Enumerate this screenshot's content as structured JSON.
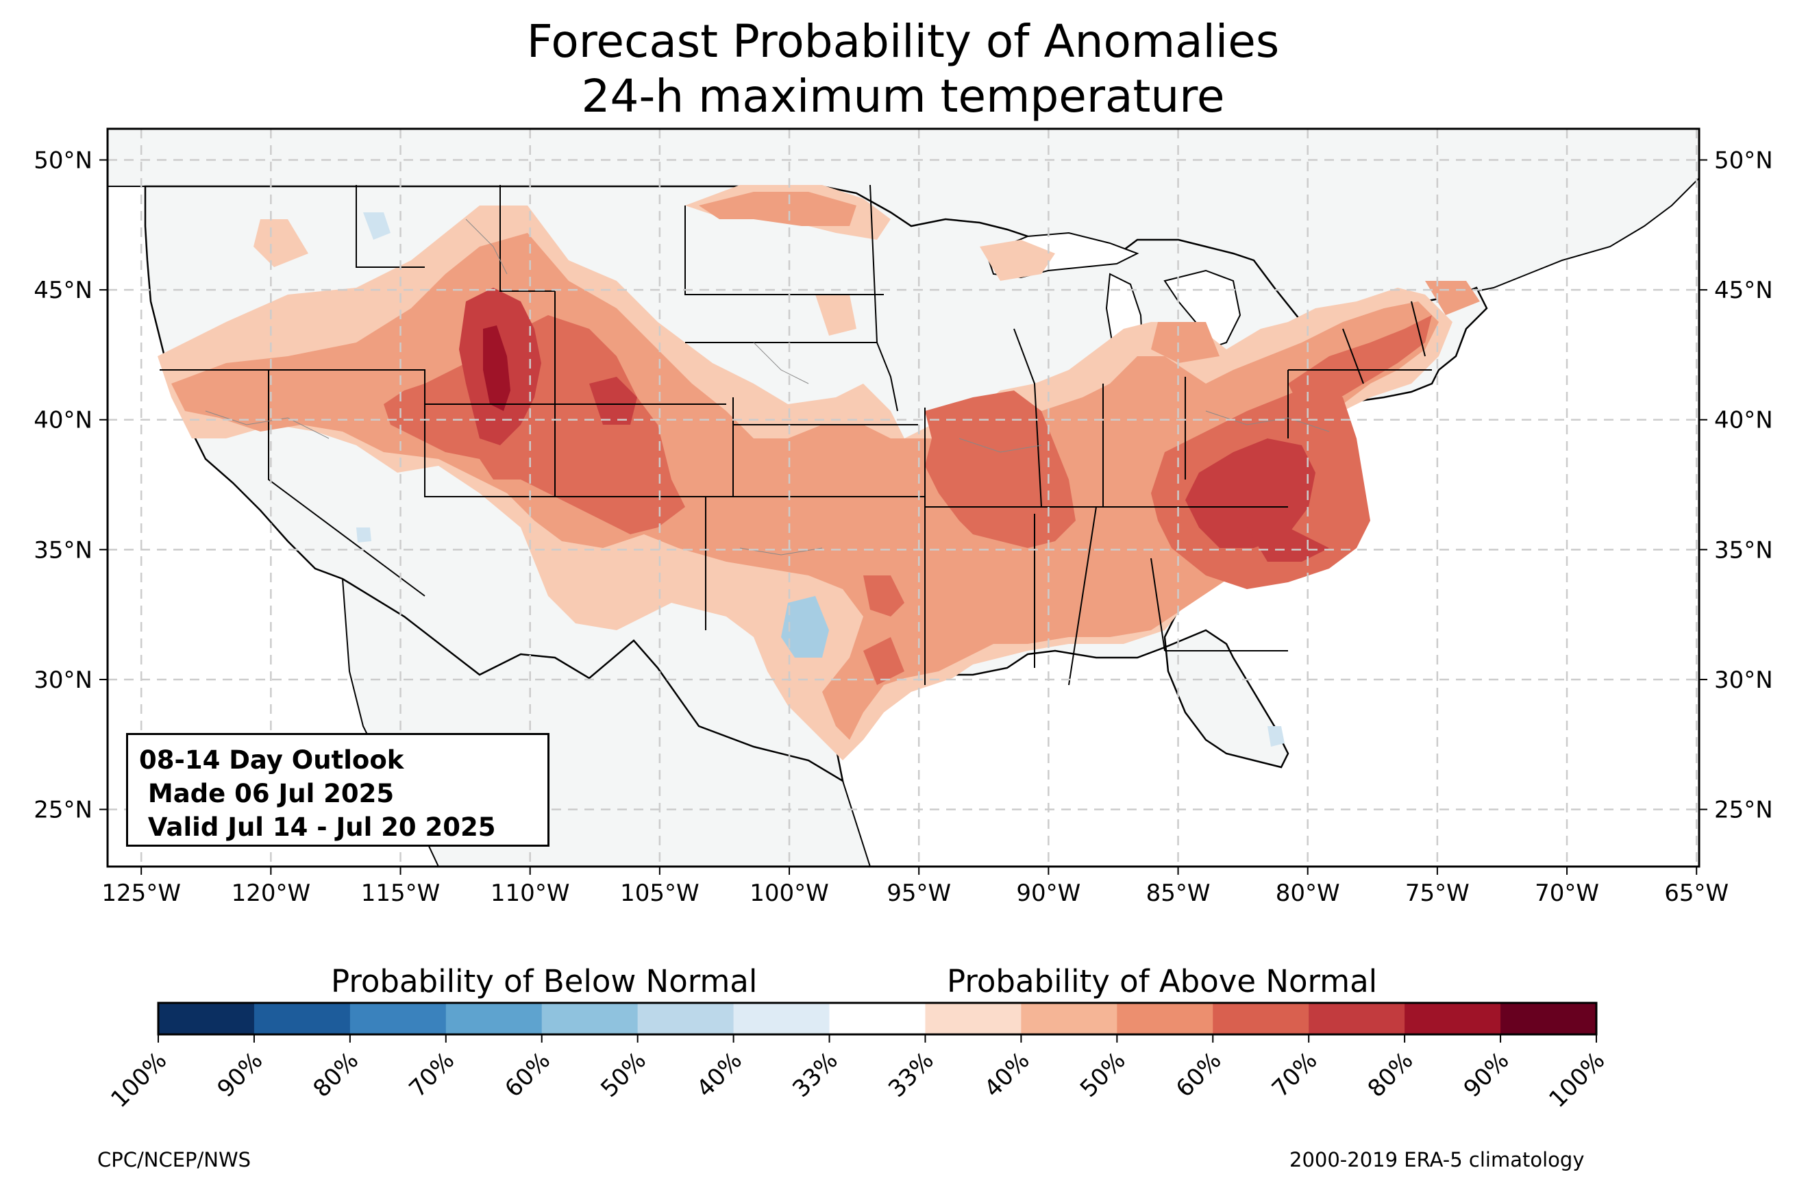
{
  "title": {
    "line1": "Forecast Probability of Anomalies",
    "line2": "24-h maximum temperature"
  },
  "outlook": {
    "line1": "08-14 Day Outlook",
    "line2": " Made 06 Jul 2025",
    "line3": " Valid Jul 14 - Jul 20 2025"
  },
  "axes": {
    "lon_ticks": [
      "125°W",
      "120°W",
      "115°W",
      "110°W",
      "105°W",
      "100°W",
      "95°W",
      "90°W",
      "85°W",
      "80°W",
      "75°W",
      "70°W",
      "65°W"
    ],
    "lat_ticks": [
      "50°N",
      "45°N",
      "40°N",
      "35°N",
      "30°N",
      "25°N"
    ],
    "lon_values": [
      -125,
      -120,
      -115,
      -110,
      -105,
      -100,
      -95,
      -90,
      -85,
      -80,
      -75,
      -70,
      -65
    ],
    "lat_values": [
      50,
      45,
      40,
      35,
      30,
      25
    ],
    "lon_range": [
      -126.3,
      -64.9
    ],
    "lat_range": [
      22.8,
      51.2
    ],
    "gridlines": true
  },
  "colorbar": {
    "below_label": "Probability of Below Normal",
    "above_label": "Probability of Above Normal",
    "ticks": [
      "100%",
      "90%",
      "80%",
      "70%",
      "60%",
      "50%",
      "40%",
      "33%",
      "33%",
      "40%",
      "50%",
      "60%",
      "70%",
      "80%",
      "90%",
      "100%"
    ],
    "colors": [
      "#0b2f61",
      "#1d5c9b",
      "#3a82bd",
      "#5ea3cf",
      "#8fc2de",
      "#bcd8ea",
      "#deebf5",
      "#ffffff",
      "#fbdccb",
      "#f5b596",
      "#ec8f6f",
      "#d9604f",
      "#c23b3e",
      "#9f1328",
      "#67001f"
    ]
  },
  "credits": {
    "left": "CPC/NCEP/NWS",
    "right": "2000-2019 ERA-5 climatology"
  },
  "colors": {
    "land": "#f4f6f6",
    "ocean": "#ffffff",
    "above_40": "#f8cbb3",
    "above_50": "#ef9f80",
    "above_60": "#de6c58",
    "above_70": "#c63e40",
    "above_80": "#9f1328",
    "below_40": "#cfe3f0",
    "below_50": "#a6cde3"
  }
}
